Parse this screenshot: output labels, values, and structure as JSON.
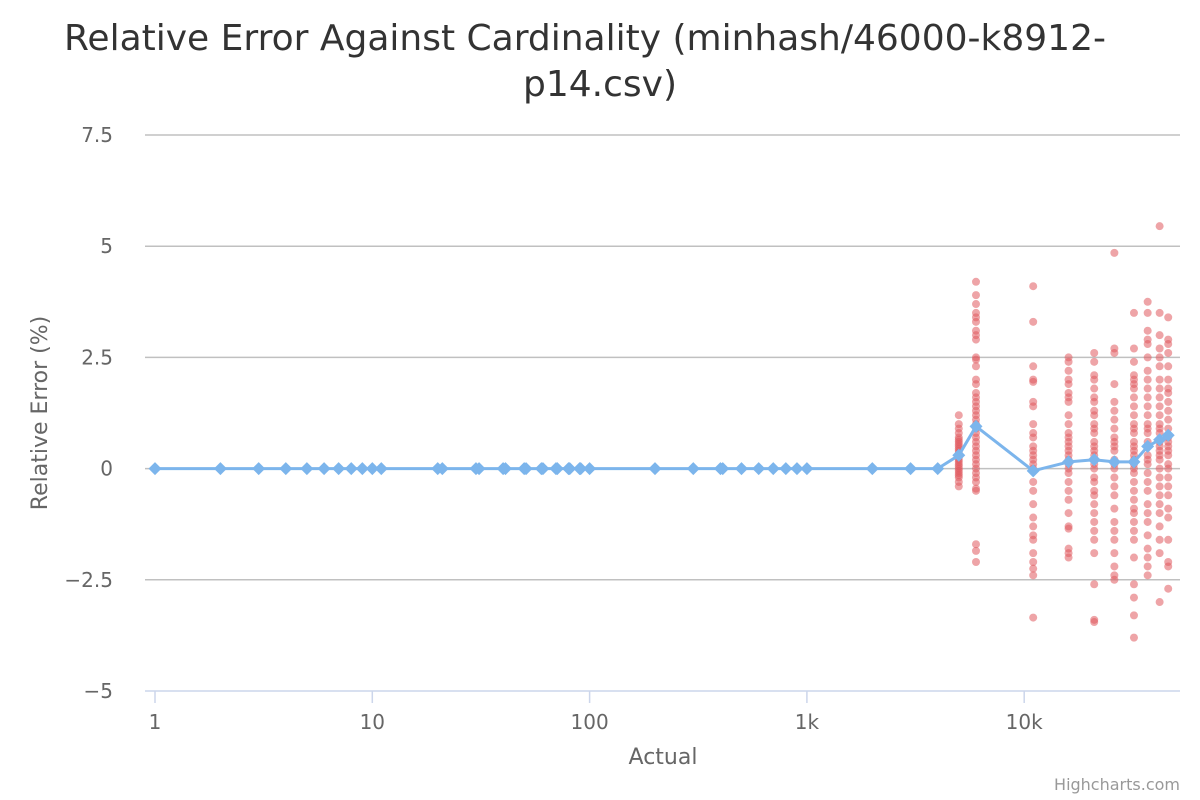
{
  "chart_data": {
    "type": "scatter",
    "title_lines": [
      "Relative Error Against Cardinality (minhash/46000-k8912-",
      "p14.csv)"
    ],
    "xlabel": "Actual",
    "ylabel": "Relative Error (%)",
    "x_scale": "log",
    "xlim": [
      1,
      46000
    ],
    "ylim": [
      -5,
      7.5
    ],
    "x_ticks": [
      {
        "value": 1,
        "label": "1"
      },
      {
        "value": 10,
        "label": "10"
      },
      {
        "value": 100,
        "label": "100"
      },
      {
        "value": 1000,
        "label": "1k"
      },
      {
        "value": 10000,
        "label": "10k"
      }
    ],
    "y_ticks": [
      {
        "value": -5,
        "label": "−5"
      },
      {
        "value": -2.5,
        "label": "−2.5"
      },
      {
        "value": 0,
        "label": "0"
      },
      {
        "value": 2.5,
        "label": "2.5"
      },
      {
        "value": 5,
        "label": "5"
      },
      {
        "value": 7.5,
        "label": "7.5"
      }
    ],
    "grid": true,
    "legend": "none",
    "credits": "Highcharts.com",
    "colors": {
      "mean_line": "#7cb5ec",
      "scatter": "#e05a5f",
      "grid": "#c0c0c0",
      "axis": "#ccd6eb"
    },
    "series": [
      {
        "kind": "line",
        "points": [
          [
            1,
            0
          ],
          [
            2,
            0
          ],
          [
            3,
            0
          ],
          [
            4,
            0
          ],
          [
            5,
            0
          ],
          [
            6,
            0
          ],
          [
            7,
            0
          ],
          [
            8,
            0
          ],
          [
            9,
            0
          ],
          [
            10,
            0
          ],
          [
            11,
            0
          ],
          [
            20,
            0
          ],
          [
            21,
            0
          ],
          [
            30,
            0
          ],
          [
            31,
            0
          ],
          [
            40,
            0
          ],
          [
            41,
            0
          ],
          [
            50,
            0
          ],
          [
            51,
            0
          ],
          [
            60,
            0
          ],
          [
            61,
            0
          ],
          [
            70,
            0
          ],
          [
            71,
            0
          ],
          [
            80,
            0
          ],
          [
            81,
            0
          ],
          [
            90,
            0
          ],
          [
            91,
            0
          ],
          [
            100,
            0
          ],
          [
            200,
            0
          ],
          [
            300,
            0
          ],
          [
            400,
            0
          ],
          [
            410,
            0
          ],
          [
            500,
            0
          ],
          [
            600,
            0
          ],
          [
            700,
            0
          ],
          [
            800,
            0
          ],
          [
            900,
            0
          ],
          [
            1000,
            0
          ],
          [
            2000,
            0
          ],
          [
            3000,
            0
          ],
          [
            4000,
            0
          ],
          [
            5000,
            0.3
          ],
          [
            6000,
            0.95
          ],
          [
            11000,
            -0.05
          ],
          [
            16000,
            0.15
          ],
          [
            21000,
            0.2
          ],
          [
            26000,
            0.15
          ],
          [
            32000,
            0.15
          ],
          [
            37000,
            0.5
          ],
          [
            42000,
            0.65
          ],
          [
            46000,
            0.75
          ]
        ]
      },
      {
        "kind": "scatter",
        "columns": [
          {
            "x": 5000,
            "y": [
              1.2,
              1.0,
              0.9,
              0.8,
              0.7,
              0.65,
              0.6,
              0.55,
              0.5,
              0.45,
              0.4,
              0.35,
              0.3,
              0.25,
              0.2,
              0.15,
              0.1,
              0.05,
              0.0,
              -0.05,
              -0.1,
              -0.15,
              -0.2,
              -0.3,
              -0.4
            ]
          },
          {
            "x": 6000,
            "y": [
              4.2,
              3.9,
              3.7,
              3.5,
              3.4,
              3.3,
              3.1,
              3.0,
              2.9,
              2.5,
              2.45,
              2.3,
              2.0,
              1.9,
              1.7,
              1.6,
              1.5,
              1.4,
              1.3,
              1.2,
              1.1,
              1.0,
              0.9,
              0.8,
              0.7,
              0.6,
              0.5,
              0.4,
              0.3,
              0.2,
              0.1,
              0.0,
              -0.1,
              -0.2,
              -0.3,
              -0.45,
              -0.5,
              -1.7,
              -1.85,
              -2.1
            ]
          },
          {
            "x": 11000,
            "y": [
              4.1,
              3.3,
              2.3,
              2.0,
              1.95,
              1.5,
              1.4,
              1.0,
              0.8,
              0.7,
              0.5,
              0.4,
              0.3,
              0.2,
              0.1,
              0.0,
              -0.3,
              -0.5,
              -0.8,
              -1.1,
              -1.3,
              -1.5,
              -1.6,
              -1.9,
              -2.1,
              -2.25,
              -2.4,
              -3.35
            ]
          },
          {
            "x": 16000,
            "y": [
              2.5,
              2.4,
              2.2,
              2.0,
              1.9,
              1.7,
              1.6,
              1.5,
              1.2,
              1.0,
              0.8,
              0.7,
              0.6,
              0.5,
              0.4,
              0.3,
              0.2,
              0.1,
              0.0,
              -0.1,
              -0.3,
              -0.5,
              -0.7,
              -1.0,
              -1.3,
              -1.35,
              -1.8,
              -1.9,
              -2.0
            ]
          },
          {
            "x": 21000,
            "y": [
              2.6,
              2.4,
              2.1,
              2.0,
              1.8,
              1.6,
              1.5,
              1.3,
              1.2,
              1.0,
              0.9,
              0.8,
              0.6,
              0.5,
              0.4,
              0.3,
              0.2,
              0.1,
              0.0,
              -0.2,
              -0.3,
              -0.5,
              -0.6,
              -0.8,
              -1.0,
              -1.2,
              -1.4,
              -1.6,
              -1.9,
              -2.6,
              -3.4,
              -3.45
            ]
          },
          {
            "x": 26000,
            "y": [
              4.85,
              2.7,
              2.6,
              1.9,
              1.5,
              1.3,
              1.1,
              0.9,
              0.7,
              0.6,
              0.5,
              0.4,
              0.2,
              0.1,
              0.0,
              -0.2,
              -0.4,
              -0.6,
              -0.9,
              -1.2,
              -1.4,
              -1.6,
              -1.9,
              -2.2,
              -2.4,
              -2.5
            ]
          },
          {
            "x": 32000,
            "y": [
              3.5,
              2.7,
              2.4,
              2.1,
              2.0,
              1.9,
              1.8,
              1.6,
              1.4,
              1.2,
              1.0,
              0.9,
              0.8,
              0.6,
              0.5,
              0.4,
              0.3,
              0.2,
              0.1,
              0.0,
              -0.1,
              -0.3,
              -0.5,
              -0.7,
              -0.9,
              -1.0,
              -1.2,
              -1.4,
              -1.6,
              -2.0,
              -2.6,
              -2.9,
              -3.3,
              -3.8
            ]
          },
          {
            "x": 37000,
            "y": [
              3.75,
              3.5,
              3.1,
              2.9,
              2.8,
              2.5,
              2.2,
              2.0,
              1.8,
              1.6,
              1.4,
              1.2,
              1.0,
              0.9,
              0.8,
              0.6,
              0.5,
              0.3,
              0.2,
              0.1,
              -0.1,
              -0.3,
              -0.5,
              -0.8,
              -1.0,
              -1.2,
              -1.5,
              -1.8,
              -2.0,
              -2.2,
              -2.4
            ]
          },
          {
            "x": 42000,
            "y": [
              5.45,
              3.5,
              3.0,
              2.7,
              2.5,
              2.3,
              2.0,
              1.8,
              1.6,
              1.4,
              1.2,
              1.0,
              0.9,
              0.8,
              0.6,
              0.5,
              0.4,
              0.3,
              0.2,
              0.0,
              -0.2,
              -0.4,
              -0.6,
              -0.8,
              -1.0,
              -1.3,
              -1.6,
              -1.9,
              -3.0
            ]
          },
          {
            "x": 46000,
            "y": [
              3.4,
              2.9,
              2.8,
              2.6,
              2.3,
              2.0,
              1.8,
              1.7,
              1.5,
              1.3,
              1.1,
              0.9,
              0.7,
              0.6,
              0.5,
              0.4,
              0.3,
              0.1,
              0.0,
              -0.2,
              -0.4,
              -0.6,
              -0.9,
              -1.1,
              -1.6,
              -2.1,
              -2.2,
              -2.7
            ]
          }
        ]
      }
    ]
  }
}
